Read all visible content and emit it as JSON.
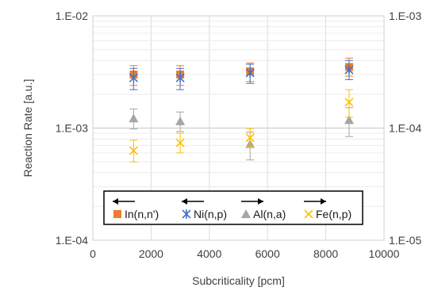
{
  "chart_data": {
    "type": "scatter",
    "title": "",
    "xlabel": "Subcriticality [pcm]",
    "ylabel": "Reaction Rate [a.u.]",
    "xlim": [
      0,
      10000
    ],
    "x_ticks": [
      0,
      2000,
      4000,
      6000,
      8000,
      10000
    ],
    "x_tick_labels": [
      "0",
      "2000",
      "4000",
      "6000",
      "8000",
      "10000"
    ],
    "y_scale": "log",
    "ylim": [
      0.0001,
      0.01
    ],
    "y_tick_labels": [
      "1.E-04",
      "1.E-03",
      "1.E-02"
    ],
    "y2_scale": "log",
    "y2lim": [
      1e-05,
      0.001
    ],
    "y2_tick_labels": [
      "1.E-05",
      "1.E-04",
      "1.E-03"
    ],
    "grid": true,
    "legend_position": "bottom-center",
    "series": [
      {
        "name": "In(n,n')",
        "axis": "left",
        "marker": "square",
        "color": "#ED7D31",
        "legend_arrow": "left",
        "x": [
          1400,
          3000,
          5400,
          8800
        ],
        "y": [
          0.003,
          0.003,
          0.0032,
          0.0035
        ],
        "y_err_low": [
          0.0024,
          0.0024,
          0.0026,
          0.0029
        ],
        "y_err_high": [
          0.0036,
          0.0036,
          0.0038,
          0.0042
        ]
      },
      {
        "name": "Ni(n,p)",
        "axis": "left",
        "marker": "star",
        "color": "#4472C4",
        "legend_arrow": "left",
        "x": [
          1400,
          3000,
          5400,
          8800
        ],
        "y": [
          0.0028,
          0.0028,
          0.0031,
          0.0033
        ],
        "y_err_low": [
          0.0022,
          0.0022,
          0.0025,
          0.0027
        ],
        "y_err_high": [
          0.0034,
          0.0034,
          0.0037,
          0.004
        ]
      },
      {
        "name": "Al(n,a)",
        "axis": "right",
        "marker": "triangle",
        "color": "#A5A5A5",
        "legend_arrow": "right",
        "x": [
          1400,
          3000,
          5400,
          8800
        ],
        "y": [
          0.000122,
          0.000115,
          7.2e-05,
          0.000118
        ],
        "y_err_low": [
          9.8e-05,
          9.3e-05,
          5.2e-05,
          8.4e-05
        ],
        "y_err_high": [
          0.000148,
          0.000139,
          9.2e-05,
          0.000152
        ]
      },
      {
        "name": "Fe(n,p)",
        "axis": "right",
        "marker": "x",
        "color": "#FFC000",
        "legend_arrow": "right",
        "x": [
          1400,
          3000,
          5400,
          8800
        ],
        "y": [
          6.3e-05,
          7.4e-05,
          8.2e-05,
          0.00017
        ],
        "y_err_low": [
          5e-05,
          6e-05,
          6.8e-05,
          0.000125
        ],
        "y_err_high": [
          7.8e-05,
          9e-05,
          9.9e-05,
          0.00022
        ]
      }
    ]
  }
}
